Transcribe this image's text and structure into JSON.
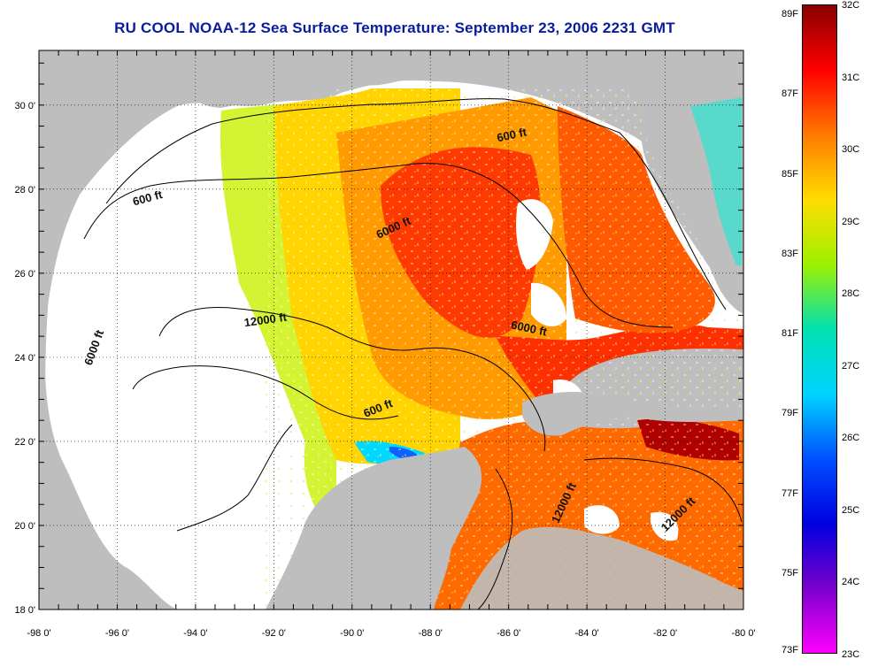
{
  "title": "RU COOL  NOAA-12  Sea Surface Temperature:  September 23, 2006 2231 GMT",
  "colors": {
    "land": "#bebebe",
    "cloud": "#ffffff",
    "title": "#0a1c9e"
  },
  "axes": {
    "lon_labels": [
      "-98 0'",
      "-96 0'",
      "-94 0'",
      "-92 0'",
      "-90 0'",
      "-88 0'",
      "-86 0'",
      "-84 0'",
      "-82 0'",
      "-80 0'"
    ],
    "lat_labels": [
      "18 0'",
      "20 0'",
      "22 0'",
      "24 0'",
      "26 0'",
      "28 0'",
      "30 0'"
    ],
    "lon_range": [
      -98,
      -80
    ],
    "lat_range": [
      18,
      31.3
    ]
  },
  "contours": [
    {
      "label": "600 ft",
      "lon": -85.9,
      "lat": 29.2
    },
    {
      "label": "600 ft",
      "lon": -95.2,
      "lat": 27.7
    },
    {
      "label": "6000 ft",
      "lon": -88.9,
      "lat": 27.0
    },
    {
      "label": "12000 ft",
      "lon": -92.2,
      "lat": 24.8
    },
    {
      "label": "6000 ft",
      "lon": -96.5,
      "lat": 24.2
    },
    {
      "label": "6000 ft",
      "lon": -85.5,
      "lat": 24.6
    },
    {
      "label": "600 ft",
      "lon": -89.3,
      "lat": 22.7
    },
    {
      "label": "12000 ft",
      "lon": -84.5,
      "lat": 20.5
    },
    {
      "label": "12000 ft",
      "lon": -81.6,
      "lat": 20.2
    }
  ],
  "colorbar": {
    "fahrenheit": [
      "89F",
      "87F",
      "85F",
      "83F",
      "81F",
      "79F",
      "77F",
      "75F",
      "73F"
    ],
    "celsius": [
      "32C",
      "31C",
      "30C",
      "29C",
      "28C",
      "27C",
      "26C",
      "25C",
      "24C",
      "23C"
    ],
    "gradient_stops": [
      "#8a0000",
      "#ff0000",
      "#ff7a00",
      "#ffdd00",
      "#9ef000",
      "#00e0b0",
      "#00d4ff",
      "#0050ff",
      "#0000e0",
      "#7a00cc",
      "#ff00ff"
    ]
  }
}
